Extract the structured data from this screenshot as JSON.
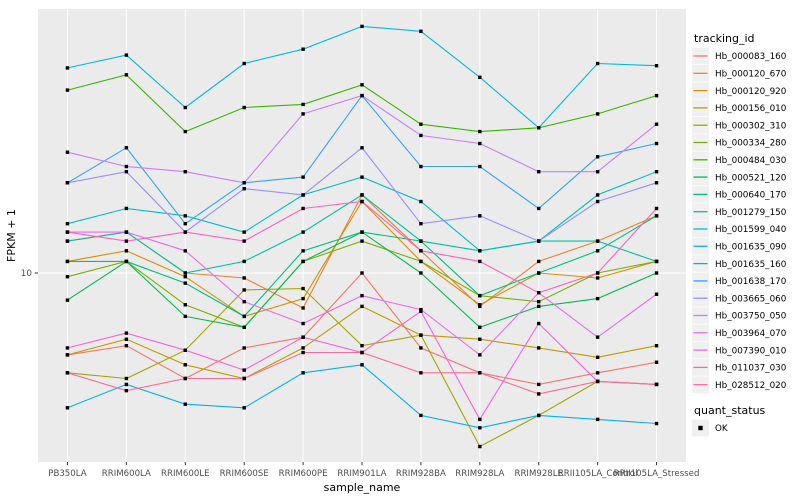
{
  "chart_data": {
    "type": "line",
    "title": "",
    "xlabel": "sample_name",
    "ylabel": "FPKM + 1",
    "y_scale": "log10",
    "y_tick_labels": [
      "10"
    ],
    "y_tick_values": [
      10
    ],
    "grid": "major-on",
    "panel_bg": "#EBEBEB",
    "grid_color": "#FFFFFF",
    "tick_text_color": "#4D4D4D",
    "point_marker": "black-square",
    "legend_position": "right",
    "categories": [
      "PB350LA",
      "RRIM600LA",
      "RRIM600LE",
      "RRIM600SE",
      "RRIM600PE",
      "RRIM901LA",
      "RRIM928BA",
      "RRIM928LA",
      "RRIM928LE",
      "RRII105LA_Control",
      "RRII105LA_Stressed"
    ],
    "legend": {
      "title": "tracking_id",
      "quant_title": "quant_status",
      "quant_items": [
        {
          "label": "OK",
          "marker": "square",
          "color": "#000000"
        }
      ]
    },
    "series": [
      {
        "name": "Hb_000083_160",
        "color": "#F8766D",
        "values": [
          5.1,
          5.5,
          4.2,
          5.4,
          5.9,
          10,
          5.4,
          4.4,
          4.0,
          4.4,
          4.8
        ]
      },
      {
        "name": "Hb_000120_670",
        "color": "#EA8331",
        "values": [
          13,
          14,
          10,
          9.6,
          7.5,
          19,
          12,
          7.6,
          11,
          13,
          16
        ]
      },
      {
        "name": "Hb_000120_920",
        "color": "#D89000",
        "values": [
          11,
          12,
          9.7,
          7.0,
          8.1,
          18,
          11,
          7.7,
          10,
          9.6,
          11
        ]
      },
      {
        "name": "Hb_000156_010",
        "color": "#C09B00",
        "values": [
          5.1,
          5.8,
          4.7,
          4.2,
          5.4,
          7.6,
          6.0,
          5.8,
          5.4,
          5.0,
          5.5
        ]
      },
      {
        "name": "Hb_000302_310",
        "color": "#A3A500",
        "values": [
          4.4,
          4.2,
          5.3,
          8.7,
          8.8,
          5.5,
          6.0,
          2.4,
          3.1,
          4.1,
          4.0
        ]
      },
      {
        "name": "Hb_000334_280",
        "color": "#7CAE00",
        "values": [
          9.7,
          11,
          7.7,
          6.4,
          11,
          13,
          11,
          8.3,
          7.9,
          10,
          11
        ]
      },
      {
        "name": "Hb_000484_030",
        "color": "#39B600",
        "values": [
          45,
          51,
          32,
          39,
          40,
          47,
          34,
          32,
          33,
          37,
          43
        ]
      },
      {
        "name": "Hb_000521_120",
        "color": "#00BB4E",
        "values": [
          8.0,
          11,
          7.0,
          6.4,
          11,
          14,
          10,
          6.4,
          7.6,
          8.1,
          10
        ]
      },
      {
        "name": "Hb_000640_170",
        "color": "#00BF7D",
        "values": [
          11,
          11,
          9.2,
          7.0,
          12,
          14,
          13,
          8.3,
          10,
          12,
          16
        ]
      },
      {
        "name": "Hb_001279_150",
        "color": "#00C1A3",
        "values": [
          13,
          14,
          10,
          11,
          14,
          19,
          13,
          12,
          13,
          13,
          11
        ]
      },
      {
        "name": "Hb_001599_040",
        "color": "#00BFC4",
        "values": [
          15,
          17,
          16,
          14,
          19,
          22,
          18,
          12,
          13,
          19,
          23
        ]
      },
      {
        "name": "Hb_001635_090",
        "color": "#00BAE0",
        "values": [
          54,
          60,
          39,
          56,
          63,
          76,
          73,
          50,
          33,
          56,
          55
        ]
      },
      {
        "name": "Hb_001635_160",
        "color": "#00B0F6",
        "values": [
          3.3,
          4.0,
          3.4,
          3.3,
          4.4,
          4.7,
          3.1,
          2.8,
          3.1,
          3.0,
          2.9
        ]
      },
      {
        "name": "Hb_001638_170",
        "color": "#35A2FF",
        "values": [
          21,
          28,
          15,
          21,
          22,
          43,
          24,
          24,
          17,
          26,
          29
        ]
      },
      {
        "name": "Hb_003665_060",
        "color": "#9590FF",
        "values": [
          21,
          23,
          14,
          20,
          19,
          28,
          15,
          16,
          13,
          18,
          21
        ]
      },
      {
        "name": "Hb_003750_050",
        "color": "#C77CFF",
        "values": [
          27,
          24,
          23,
          21,
          37,
          43,
          31,
          29,
          23,
          23,
          34
        ]
      },
      {
        "name": "Hb_003964_070",
        "color": "#E76BF3",
        "values": [
          14,
          14,
          12,
          7.9,
          6.6,
          8.3,
          7.4,
          5.1,
          8.5,
          5.9,
          8.4
        ]
      },
      {
        "name": "Hb_007390_010",
        "color": "#FA62DB",
        "values": [
          5.4,
          6.1,
          5.3,
          4.5,
          5.9,
          5.2,
          7.3,
          3.0,
          6.6,
          4.1,
          4.0
        ]
      },
      {
        "name": "Hb_011037_030",
        "color": "#FF62BC",
        "values": [
          14,
          13,
          14,
          13,
          17,
          18,
          12,
          11,
          8.5,
          10,
          17
        ]
      },
      {
        "name": "Hb_028512_020",
        "color": "#FF6A98",
        "values": [
          4.4,
          3.8,
          4.2,
          4.2,
          5.2,
          5.2,
          4.4,
          4.4,
          3.7,
          4.1,
          4.0
        ]
      }
    ]
  }
}
